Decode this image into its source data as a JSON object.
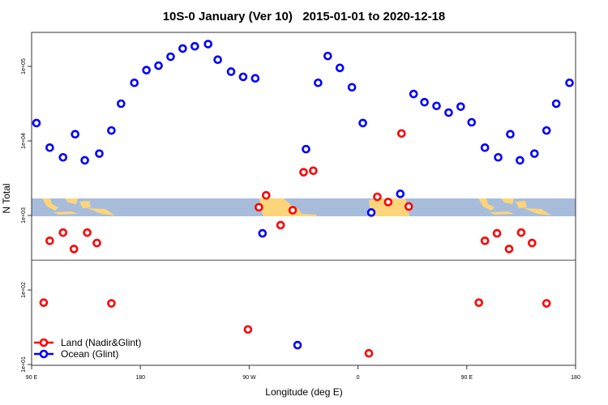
{
  "chart_data": {
    "type": "scatter",
    "title": "10S-0 January (Ver 10)   2015-01-01 to 2020-12-18",
    "xlabel": "Longitude (deg E)",
    "ylabel": "N Total",
    "y_scale": "log10",
    "xlim": [
      90,
      540
    ],
    "ylim_log10": [
      0.99,
      5.45
    ],
    "x_ticks": [
      {
        "value": 90,
        "label": "90 E"
      },
      {
        "value": 180,
        "label": "180"
      },
      {
        "value": 270,
        "label": "90 W"
      },
      {
        "value": 360,
        "label": "0"
      },
      {
        "value": 450,
        "label": "90 E"
      },
      {
        "value": 540,
        "label": "180"
      }
    ],
    "y_ticks": [
      {
        "log10": 5,
        "label": "1e+05"
      },
      {
        "log10": 4,
        "label": "1e+04"
      },
      {
        "log10": 3,
        "label": "1e+03"
      },
      {
        "log10": 2,
        "label": "1e+02"
      },
      {
        "log10": 1,
        "label": "1e+01"
      }
    ],
    "divider_log10": 2.4,
    "legend_position": "bottom-left",
    "series": [
      {
        "name": "Land (Nadir&Glint)",
        "color": "#ff0000",
        "lon": [
          100,
          105,
          116,
          125,
          136,
          144,
          156,
          269,
          278,
          284,
          296,
          306,
          315,
          323,
          369,
          376,
          385,
          396,
          402,
          460,
          465,
          475,
          485,
          495,
          504,
          516
        ],
        "log10_n": [
          1.83,
          2.66,
          2.77,
          2.55,
          2.77,
          2.63,
          1.82,
          1.47,
          3.11,
          3.27,
          2.87,
          3.07,
          3.58,
          3.6,
          1.15,
          3.25,
          3.18,
          4.1,
          3.12,
          1.83,
          2.66,
          2.76,
          2.55,
          2.77,
          2.63,
          1.82
        ]
      },
      {
        "name": "Ocean (Glint)",
        "color": "#0000ff",
        "lon": [
          94,
          105,
          116,
          126,
          134,
          146,
          156,
          164,
          175,
          185,
          195,
          205,
          215,
          225,
          236,
          244,
          255,
          265,
          275,
          281,
          310,
          317,
          327,
          335,
          345,
          355,
          364,
          371,
          395,
          406,
          415,
          425,
          435,
          445,
          454,
          465,
          476,
          486,
          494,
          506,
          516,
          524,
          535
        ],
        "log10_n": [
          4.24,
          3.91,
          3.78,
          4.09,
          3.74,
          3.83,
          4.14,
          4.5,
          4.78,
          4.95,
          5.01,
          5.13,
          5.24,
          5.27,
          5.3,
          5.09,
          4.93,
          4.86,
          4.84,
          2.76,
          1.26,
          3.89,
          4.78,
          5.14,
          4.98,
          4.72,
          4.24,
          3.04,
          3.29,
          4.63,
          4.52,
          4.47,
          4.38,
          4.46,
          4.25,
          3.91,
          3.78,
          4.09,
          3.74,
          3.83,
          4.14,
          4.5,
          4.78
        ]
      }
    ],
    "map_strip": {
      "ocean_color": "#a7bcdb",
      "land_color": "#fcd57a"
    }
  }
}
